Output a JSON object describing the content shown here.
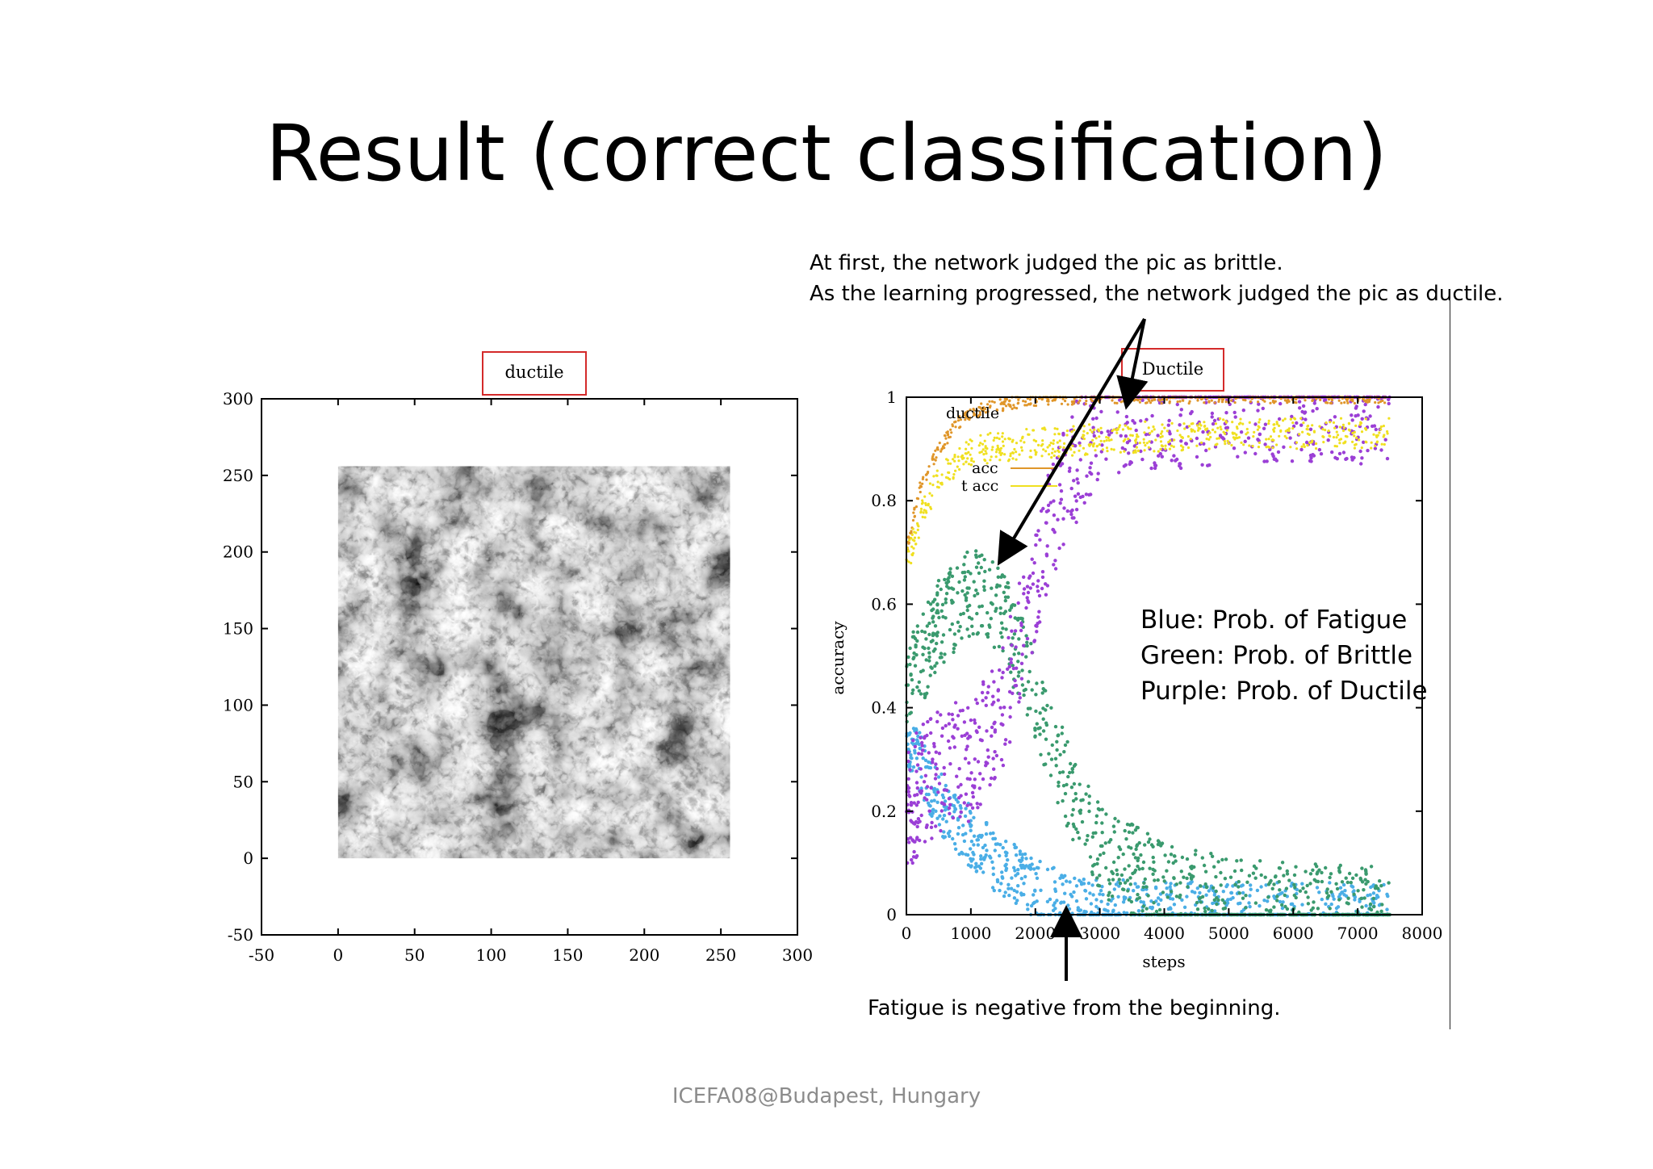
{
  "slide": {
    "title": "Result (correct classification)",
    "note_top_line1": "At first, the network judged the pic as brittle.",
    "note_top_line2": "As the learning progressed, the network judged the pic as ductile.",
    "note_bottom": "Fatigue is negative from the beginning.",
    "legend_lines": [
      "Blue: Prob. of Fatigue",
      "Green: Prob. of Brittle",
      "Purple: Prob. of Ductile"
    ],
    "footer": "ICEFA08@Budapest, Hungary"
  },
  "left_panel": {
    "label": "ductile",
    "x_ticks": [
      "-50",
      "0",
      "50",
      "100",
      "150",
      "200",
      "250",
      "300"
    ],
    "y_ticks": [
      "300",
      "250",
      "200",
      "150",
      "100",
      "50",
      "0",
      "-50"
    ]
  },
  "right_panel": {
    "label": "Ductile",
    "inner_legend": [
      "ductile",
      "acc",
      "t acc"
    ]
  },
  "colors": {
    "fatigue": "#4aaee6",
    "brittle": "#3a9a6e",
    "ductile": "#9b3fd6",
    "train_acc": "#e0962a",
    "test_acc": "#f0e020",
    "highlight": "#d42a2a"
  },
  "chart_data": [
    {
      "type": "heatmap",
      "xlim": [
        -50,
        300
      ],
      "ylim": [
        -50,
        300
      ],
      "x_ticks": [
        -50,
        0,
        50,
        100,
        150,
        200,
        250,
        300
      ],
      "y_ticks": [
        -50,
        0,
        50,
        100,
        150,
        200,
        250,
        300
      ]
    },
    {
      "type": "scatter",
      "xlabel": "steps",
      "ylabel": "accuracy",
      "xlim": [
        0,
        8000
      ],
      "ylim": [
        0,
        1
      ],
      "x_ticks": [
        0,
        1000,
        2000,
        3000,
        4000,
        5000,
        6000,
        7000,
        8000
      ],
      "y_ticks": [
        0,
        0.2,
        0.4,
        0.6,
        0.8,
        1
      ],
      "series": [
        {
          "name": "Blue: Prob. of Fatigue",
          "color": "#4aaee6",
          "x": [
            0,
            250,
            500,
            1000,
            1500,
            2000,
            2500,
            3000,
            4000,
            5000,
            6000,
            7000,
            7500
          ],
          "y": [
            0.35,
            0.28,
            0.22,
            0.15,
            0.09,
            0.05,
            0.02,
            0.01,
            0.005,
            0.003,
            0.002,
            0.002,
            0.002
          ]
        },
        {
          "name": "Green: Prob. of Brittle",
          "color": "#3a9a6e",
          "x": [
            0,
            250,
            500,
            1000,
            1500,
            2000,
            2500,
            3000,
            4000,
            5000,
            6000,
            7000,
            7500
          ],
          "y": [
            0.45,
            0.5,
            0.56,
            0.62,
            0.58,
            0.42,
            0.25,
            0.12,
            0.05,
            0.02,
            0.01,
            0.005,
            0.005
          ]
        },
        {
          "name": "Purple: Prob. of Ductile",
          "color": "#9b3fd6",
          "x": [
            0,
            250,
            500,
            1000,
            1500,
            2000,
            2500,
            3000,
            4000,
            5000,
            6000,
            7000,
            7500
          ],
          "y": [
            0.2,
            0.25,
            0.28,
            0.3,
            0.4,
            0.65,
            0.85,
            0.95,
            0.98,
            0.99,
            0.99,
            0.99,
            0.99
          ]
        },
        {
          "name": "acc",
          "color": "#e0962a",
          "x": [
            0,
            200,
            500,
            800,
            1200,
            2000,
            3000,
            5000,
            7500
          ],
          "y": [
            0.7,
            0.82,
            0.9,
            0.95,
            0.98,
            0.995,
            1,
            1,
            1
          ]
        },
        {
          "name": "t acc",
          "color": "#f0e020",
          "x": [
            0,
            200,
            500,
            800,
            1200,
            2000,
            3000,
            5000,
            7500
          ],
          "y": [
            0.68,
            0.76,
            0.84,
            0.88,
            0.9,
            0.91,
            0.92,
            0.93,
            0.93
          ]
        }
      ]
    }
  ]
}
